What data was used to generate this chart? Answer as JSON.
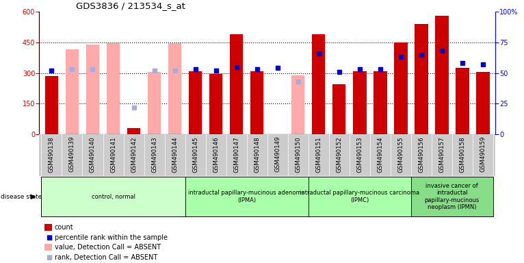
{
  "title": "GDS3836 / 213534_s_at",
  "samples": [
    "GSM490138",
    "GSM490139",
    "GSM490140",
    "GSM490141",
    "GSM490142",
    "GSM490143",
    "GSM490144",
    "GSM490145",
    "GSM490146",
    "GSM490147",
    "GSM490148",
    "GSM490149",
    "GSM490150",
    "GSM490151",
    "GSM490152",
    "GSM490153",
    "GSM490154",
    "GSM490155",
    "GSM490156",
    "GSM490157",
    "GSM490158",
    "GSM490159"
  ],
  "count_present": [
    285,
    null,
    null,
    null,
    30,
    null,
    null,
    310,
    295,
    490,
    310,
    null,
    null,
    490,
    245,
    310,
    310,
    450,
    540,
    580,
    325,
    305
  ],
  "count_absent": [
    null,
    415,
    440,
    445,
    null,
    305,
    445,
    null,
    null,
    null,
    null,
    null,
    290,
    null,
    null,
    null,
    null,
    null,
    null,
    null,
    null,
    null
  ],
  "rank_present": [
    52,
    null,
    null,
    null,
    null,
    null,
    null,
    53,
    52,
    55,
    53,
    54,
    null,
    66,
    51,
    53,
    53,
    63,
    65,
    68,
    58,
    57
  ],
  "rank_absent": [
    null,
    53,
    53,
    null,
    22,
    52,
    52,
    null,
    null,
    null,
    null,
    null,
    43,
    null,
    null,
    null,
    null,
    null,
    null,
    null,
    null,
    null
  ],
  "bar_color_present": "#cc0000",
  "bar_color_absent": "#ffaaaa",
  "marker_color_present": "#0000cc",
  "marker_color_absent": "#aaaadd",
  "ylim_left": [
    0,
    600
  ],
  "ylim_right": [
    0,
    100
  ],
  "yticks_left": [
    0,
    150,
    300,
    450,
    600
  ],
  "yticks_right": [
    0,
    25,
    50,
    75,
    100
  ],
  "group_ranges": [
    [
      0,
      7
    ],
    [
      7,
      13
    ],
    [
      13,
      18
    ],
    [
      18,
      22
    ]
  ],
  "group_labels": [
    "control, normal",
    "intraductal papillary-mucinous adenoma\n(IPMA)",
    "intraductal papillary-mucinous carcinoma\n(IPMC)",
    "invasive cancer of\nintraductal\npapillary-mucinous\nneoplasm (IPMN)"
  ],
  "group_colors": [
    "#ccffcc",
    "#aaffaa",
    "#aaffaa",
    "#88dd88"
  ],
  "xtick_bg": "#cccccc",
  "legend_items": [
    {
      "color": "#cc0000",
      "type": "rect",
      "label": "count"
    },
    {
      "color": "#0000cc",
      "type": "square",
      "label": "percentile rank within the sample"
    },
    {
      "color": "#ffaaaa",
      "type": "rect",
      "label": "value, Detection Call = ABSENT"
    },
    {
      "color": "#aaaadd",
      "type": "square",
      "label": "rank, Detection Call = ABSENT"
    }
  ]
}
